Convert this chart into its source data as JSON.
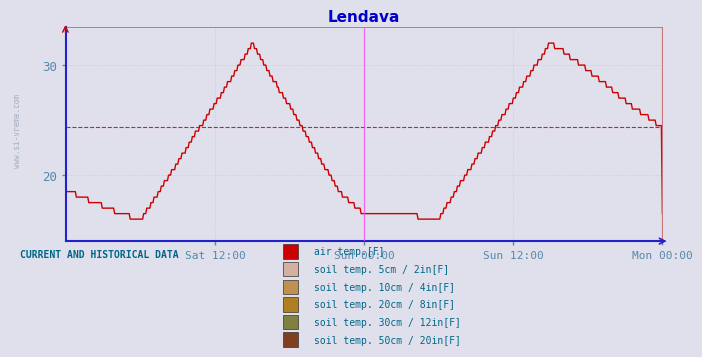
{
  "title": "Lendava",
  "title_color": "#0000cc",
  "bg_color": "#e0e0ec",
  "line_color": "#cc0000",
  "line_width": 1.0,
  "grid_color": "#c8c8d8",
  "hline_color": "#cc0000",
  "hline_value": 24.4,
  "vline_color": "#ff44ff",
  "tick_color": "#5588aa",
  "yticks": [
    20,
    30
  ],
  "ylim": [
    14.0,
    33.5
  ],
  "xlim": [
    0,
    48
  ],
  "xtick_hours": [
    12,
    24,
    36,
    48
  ],
  "xticklabels": [
    "Sat 12:00",
    "Sun 00:00",
    "Sun 12:00",
    "Mon 00:00"
  ],
  "watermark": "www.si-vreme.com",
  "ylabel_side": "www.si-vreme.com",
  "current_label": "CURRENT AND HISTORICAL DATA",
  "legend_items": [
    {
      "label": "air temp.[F]",
      "color": "#cc0000"
    },
    {
      "label": "soil temp. 5cm / 2in[F]",
      "color": "#d4b0a0"
    },
    {
      "label": "soil temp. 10cm / 4in[F]",
      "color": "#c09050"
    },
    {
      "label": "soil temp. 20cm / 8in[F]",
      "color": "#b08020"
    },
    {
      "label": "soil temp. 30cm / 12in[F]",
      "color": "#808040"
    },
    {
      "label": "soil temp. 50cm / 20in[F]",
      "color": "#804020"
    }
  ],
  "spine_bottom_color": "#2222cc",
  "spine_left_color": "#2222cc",
  "spine_top_color": "#cc4444",
  "spine_right_color": "#cc4444",
  "num_points": 577
}
